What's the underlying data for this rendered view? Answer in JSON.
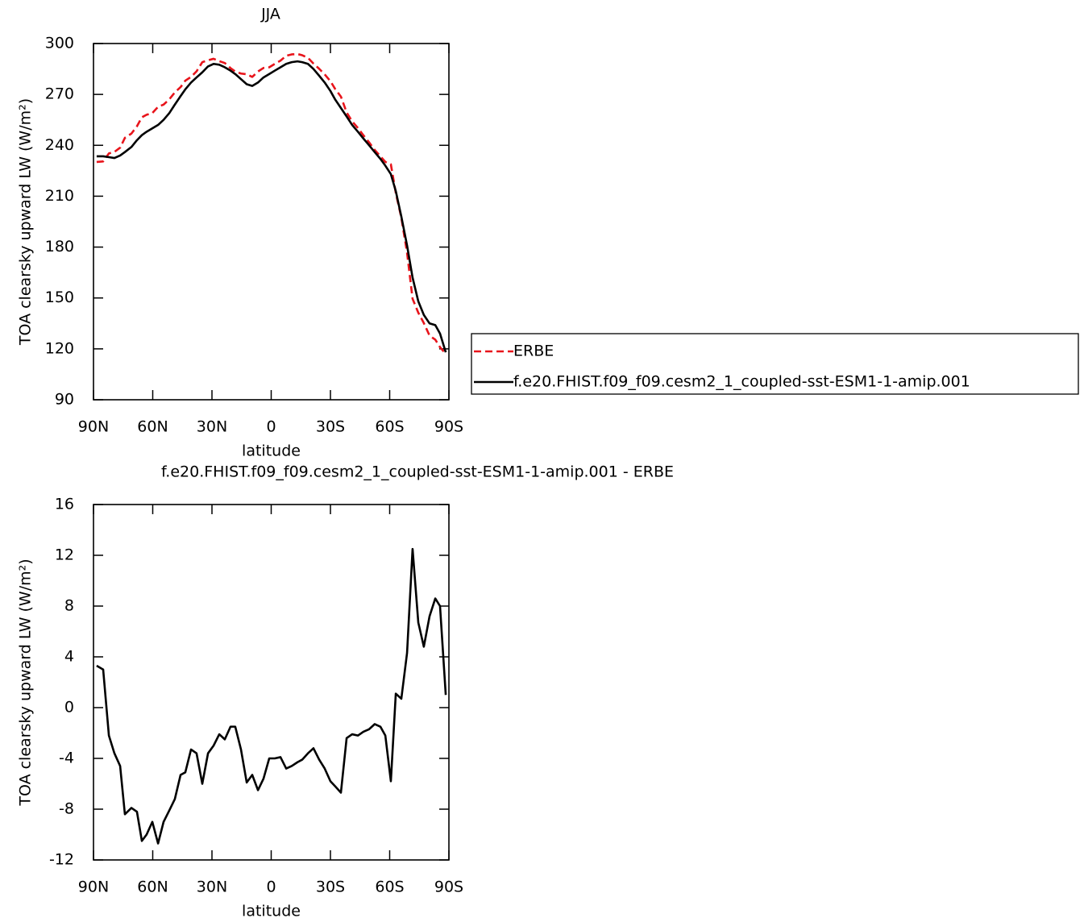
{
  "chart_data": [
    {
      "type": "line",
      "title": "JJA",
      "xlabel": "latitude",
      "ylabel": "TOA clearsky upward LW (W/m²)",
      "x": [
        88.4,
        85.1,
        82.2,
        79.4,
        76.5,
        74.1,
        70.8,
        68.0,
        65.5,
        63.1,
        60.2,
        57.3,
        54.5,
        51.6,
        48.8,
        45.9,
        43.5,
        40.6,
        37.8,
        34.9,
        32.0,
        29.2,
        26.3,
        23.5,
        20.6,
        18.2,
        15.3,
        12.4,
        9.6,
        6.7,
        3.9,
        1.0,
        -1.8,
        -4.7,
        -7.6,
        -10.4,
        -13.3,
        -15.7,
        -18.6,
        -21.4,
        -24.3,
        -27.1,
        -30.0,
        -32.4,
        -35.3,
        -38.2,
        -41.0,
        -43.9,
        -46.7,
        -49.6,
        -52.4,
        -55.3,
        -57.8,
        -60.6,
        -63.1,
        -65.9,
        -68.8,
        -71.6,
        -74.5,
        -77.3,
        -80.2,
        -83.1,
        -85.5,
        -88.4
      ],
      "series": [
        {
          "name": "ERBE",
          "color": "#e8141b",
          "dashed": true,
          "values": [
            230.2,
            230.5,
            235.2,
            236.1,
            238.6,
            244.4,
            246.9,
            251.2,
            256.5,
            258,
            259,
            262.7,
            264,
            267.1,
            271.2,
            274.3,
            278.1,
            280.3,
            283.6,
            289,
            290.1,
            291,
            289.6,
            288.5,
            285.5,
            283.5,
            282.3,
            281.9,
            280.3,
            283.5,
            285.6,
            286,
            288,
            289.9,
            292.8,
            293.6,
            293.8,
            293.1,
            291.6,
            288.2,
            285.1,
            281.8,
            277.8,
            273.2,
            268.7,
            259.4,
            254.1,
            250.2,
            245.9,
            241.7,
            237.3,
            233.5,
            230.2,
            228.8,
            211.9,
            197.3,
            176.7,
            149.5,
            141.3,
            135.2,
            127.8,
            125.4,
            121,
            117
          ]
        },
        {
          "name": "f.e20.FHIST.f09_f09.cesm2_1_coupled-sst-ESM1-1-amip.001",
          "color": "#000000",
          "dashed": false,
          "values": [
            233.5,
            233.5,
            233,
            232.5,
            234,
            236,
            239,
            243,
            246,
            248,
            250,
            252,
            255,
            259,
            264,
            269,
            273,
            277,
            280,
            283,
            286.5,
            288,
            287.5,
            286,
            284,
            282,
            279,
            276,
            275,
            277,
            280,
            282,
            284,
            286,
            288,
            289,
            289.5,
            289,
            288,
            285,
            281,
            277,
            272,
            267,
            262,
            257,
            252,
            248,
            244,
            240,
            236,
            232,
            228,
            223,
            213,
            198,
            181,
            162,
            148,
            140,
            135,
            134,
            129,
            118
          ]
        }
      ],
      "xlim": [
        90,
        -90
      ],
      "xticks": [
        {
          "value": 90,
          "label": "90N"
        },
        {
          "value": 60,
          "label": "60N"
        },
        {
          "value": 30,
          "label": "30N"
        },
        0,
        {
          "value": -30,
          "label": "30S"
        },
        {
          "value": -60,
          "label": "60S"
        },
        {
          "value": -90,
          "label": "90S"
        }
      ],
      "ylim": [
        90,
        300
      ],
      "yticks": [
        90,
        120,
        150,
        180,
        210,
        240,
        270,
        300
      ],
      "legend": "right"
    },
    {
      "type": "line",
      "title": "f.e20.FHIST.f09_f09.cesm2_1_coupled-sst-ESM1-1-amip.001 - ERBE",
      "xlabel": "latitude",
      "ylabel": "TOA clearsky upward LW (W/m²)",
      "x": [
        88.4,
        85.1,
        82.2,
        79.4,
        76.5,
        74.1,
        70.8,
        68.0,
        65.5,
        63.1,
        60.2,
        57.3,
        54.5,
        51.6,
        48.8,
        45.9,
        43.5,
        40.6,
        37.8,
        34.9,
        32.0,
        29.2,
        26.3,
        23.5,
        20.6,
        18.2,
        15.3,
        12.4,
        9.6,
        6.7,
        3.9,
        1.0,
        -1.8,
        -4.7,
        -7.6,
        -10.4,
        -13.3,
        -15.7,
        -18.6,
        -21.4,
        -24.3,
        -27.1,
        -30.0,
        -32.4,
        -35.3,
        -38.2,
        -41.0,
        -43.9,
        -46.7,
        -49.6,
        -52.4,
        -55.3,
        -57.8,
        -60.6,
        -63.1,
        -65.9,
        -68.8,
        -71.6,
        -74.5,
        -77.3,
        -80.2,
        -83.1,
        -85.5,
        -88.4
      ],
      "values": [
        3.3,
        3.0,
        -2.2,
        -3.6,
        -4.6,
        -8.4,
        -7.9,
        -8.2,
        -10.5,
        -10.0,
        -9.0,
        -10.7,
        -9.0,
        -8.1,
        -7.2,
        -5.3,
        -5.1,
        -3.3,
        -3.6,
        -6.0,
        -3.6,
        -3.0,
        -2.1,
        -2.5,
        -1.5,
        -1.5,
        -3.3,
        -5.9,
        -5.3,
        -6.5,
        -5.6,
        -4.0,
        -4.0,
        -3.9,
        -4.8,
        -4.6,
        -4.3,
        -4.1,
        -3.6,
        -3.2,
        -4.1,
        -4.8,
        -5.8,
        -6.2,
        -6.7,
        -2.4,
        -2.1,
        -2.2,
        -1.9,
        -1.7,
        -1.3,
        -1.5,
        -2.2,
        -5.8,
        1.1,
        0.7,
        4.3,
        12.5,
        6.7,
        4.8,
        7.2,
        8.6,
        8.0,
        1.0
      ],
      "color": "#000000",
      "xlim": [
        90,
        -90
      ],
      "xticks": [
        {
          "value": 90,
          "label": "90N"
        },
        {
          "value": 60,
          "label": "60N"
        },
        {
          "value": 30,
          "label": "30N"
        },
        0,
        {
          "value": -30,
          "label": "30S"
        },
        {
          "value": -60,
          "label": "60S"
        },
        {
          "value": -90,
          "label": "90S"
        }
      ],
      "ylim": [
        -12,
        16
      ],
      "yticks": [
        -12,
        -8,
        -4,
        0,
        4,
        8,
        12,
        16
      ]
    }
  ]
}
